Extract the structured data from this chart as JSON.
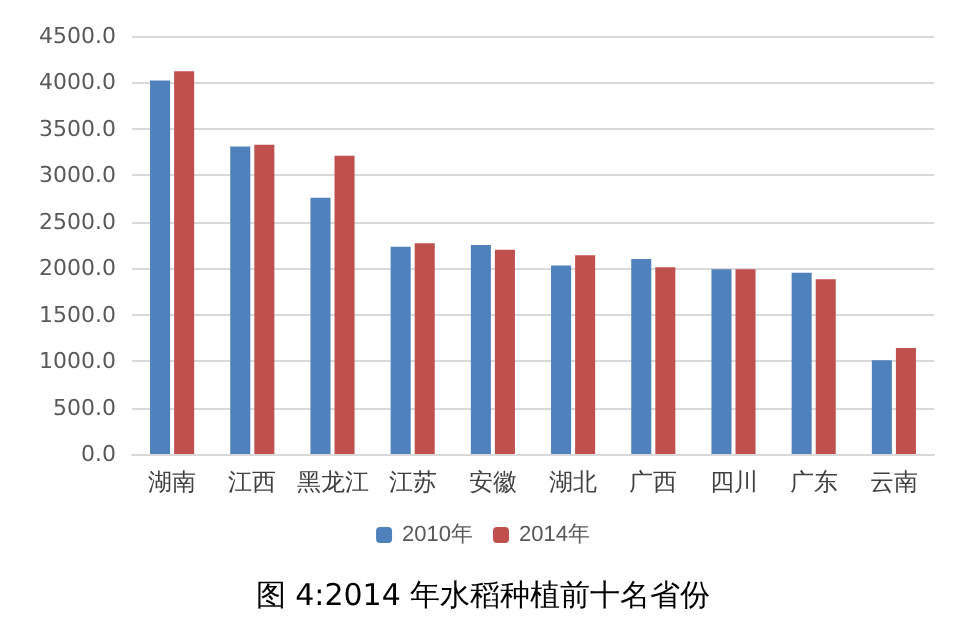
{
  "chart_data": {
    "type": "bar",
    "title": "图 4:2014 年水稻种植前十名省份",
    "categories": [
      "湖南",
      "江西",
      "黑龙江",
      "江苏",
      "安徽",
      "湖北",
      "广西",
      "四川",
      "广东",
      "云南"
    ],
    "series": [
      {
        "name": "2010年",
        "color": "#4f81bd",
        "values": [
          4020,
          3310,
          2760,
          2230,
          2250,
          2030,
          2100,
          1990,
          1950,
          1010
        ]
      },
      {
        "name": "2014年",
        "color": "#c0504d",
        "values": [
          4120,
          3330,
          3210,
          2270,
          2200,
          2140,
          2010,
          1990,
          1880,
          1140
        ]
      }
    ],
    "ylim": [
      0,
      4500
    ],
    "yticks": [
      {
        "value": 0,
        "label": "0.0"
      },
      {
        "value": 500,
        "label": "500.0"
      },
      {
        "value": 1000,
        "label": "1000.0"
      },
      {
        "value": 1500,
        "label": "1500.0"
      },
      {
        "value": 2000,
        "label": "2000.0"
      },
      {
        "value": 2500,
        "label": "2500.0"
      },
      {
        "value": 3000,
        "label": "3000.0"
      },
      {
        "value": 3500,
        "label": "3500.0"
      },
      {
        "value": 4000,
        "label": "4000.0"
      },
      {
        "value": 4500,
        "label": "4500.0"
      }
    ],
    "grid": "y",
    "legend": "bottom"
  }
}
